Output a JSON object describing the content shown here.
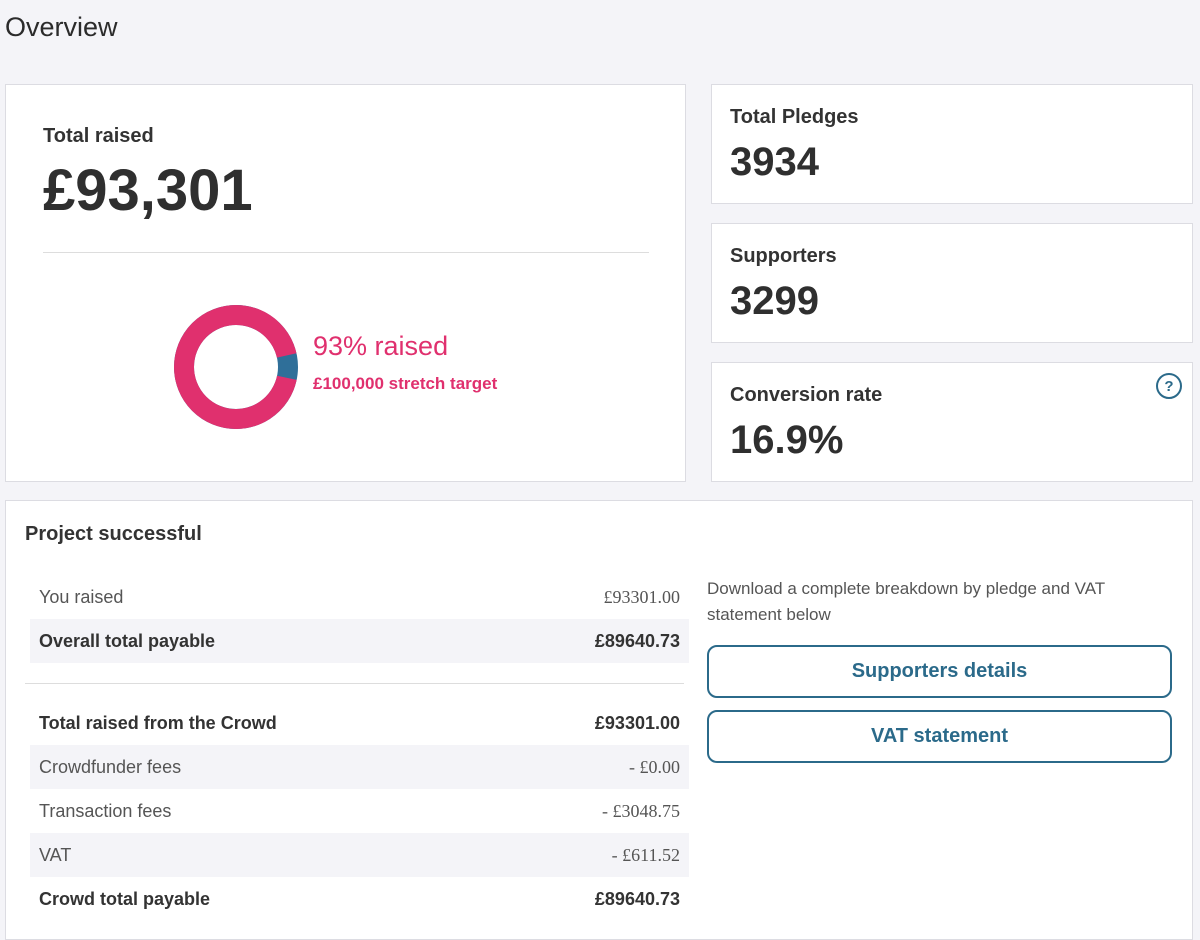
{
  "header": {
    "title": "Overview"
  },
  "total_raised": {
    "label": "Total raised",
    "amount": "£93,301"
  },
  "progress": {
    "percent": 93,
    "label": "93% raised",
    "target": "£100,000 stretch target"
  },
  "stats": [
    {
      "label": "Total Pledges",
      "value": "3934"
    },
    {
      "label": "Supporters",
      "value": "3299"
    },
    {
      "label": "Conversion rate",
      "value": "16.9%",
      "help": "?"
    }
  ],
  "result": {
    "title": "Project successful",
    "summary": [
      {
        "label": "You raised",
        "value": "£93301.00",
        "bold": false
      },
      {
        "label": "Overall total payable",
        "value": "£89640.73",
        "bold": true
      }
    ],
    "breakdown": [
      {
        "label": "Total raised from the Crowd",
        "value": "£93301.00",
        "bold": true
      },
      {
        "label": "Crowdfunder fees",
        "value": "- £0.00",
        "bold": false
      },
      {
        "label": "Transaction fees",
        "value": "- £3048.75",
        "bold": false
      },
      {
        "label": "VAT",
        "value": "- £611.52",
        "bold": false
      },
      {
        "label": "Crowd total payable",
        "value": "£89640.73",
        "bold": true
      }
    ],
    "download_note": "Download a complete breakdown by pledge and VAT statement below",
    "buttons": [
      "Supporters details",
      "VAT statement"
    ]
  }
}
